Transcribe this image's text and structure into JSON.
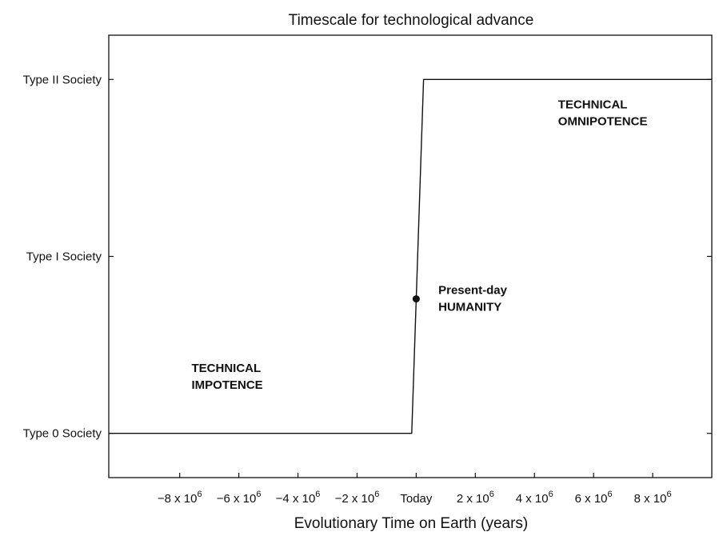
{
  "chart_data": {
    "type": "line",
    "title": "Timescale for technological advance",
    "xlabel": "Evolutionary Time on Earth (years)",
    "ylabel": "",
    "xlim": [
      -10400000,
      10000000
    ],
    "ylim": [
      -0.25,
      2.25
    ],
    "x_ticks": [
      {
        "value": -8000000,
        "base": "−8 x 10",
        "exp": "6"
      },
      {
        "value": -6000000,
        "base": "−6 x 10",
        "exp": "6"
      },
      {
        "value": -4000000,
        "base": "−4 x 10",
        "exp": "6"
      },
      {
        "value": -2000000,
        "base": "−2 x 10",
        "exp": "6"
      },
      {
        "value": 0,
        "base": "Today",
        "exp": ""
      },
      {
        "value": 2000000,
        "base": "2 x 10",
        "exp": "6"
      },
      {
        "value": 4000000,
        "base": "4 x 10",
        "exp": "6"
      },
      {
        "value": 6000000,
        "base": "6 x 10",
        "exp": "6"
      },
      {
        "value": 8000000,
        "base": "8 x 10",
        "exp": "6"
      }
    ],
    "y_ticks": [
      {
        "value": 0,
        "label": "Type 0 Society"
      },
      {
        "value": 1,
        "label": "Type I Society"
      },
      {
        "value": 2,
        "label": "Type II Society"
      }
    ],
    "series": [
      {
        "x": [
          -10400000,
          -150000,
          250000,
          10000000
        ],
        "y": [
          0,
          0,
          2,
          2
        ]
      }
    ],
    "points": [
      {
        "x": 0,
        "y": 0.76
      }
    ],
    "annotations": [
      {
        "id": "impotence",
        "lines": [
          "TECHNICAL",
          "IMPOTENCE"
        ],
        "x": -7600000,
        "y": 0.32
      },
      {
        "id": "omnipotence",
        "lines": [
          "TECHNICAL",
          "OMNIPOTENCE"
        ],
        "x": 4800000,
        "y": 1.81
      },
      {
        "id": "humanity",
        "lines": [
          "Present-day",
          "HUMANITY"
        ],
        "x": 750000,
        "y": 0.76
      }
    ],
    "grid": false,
    "legend": "none"
  },
  "colors": {
    "line": "#111111",
    "frame": "#111111",
    "background": "#ffffff"
  }
}
